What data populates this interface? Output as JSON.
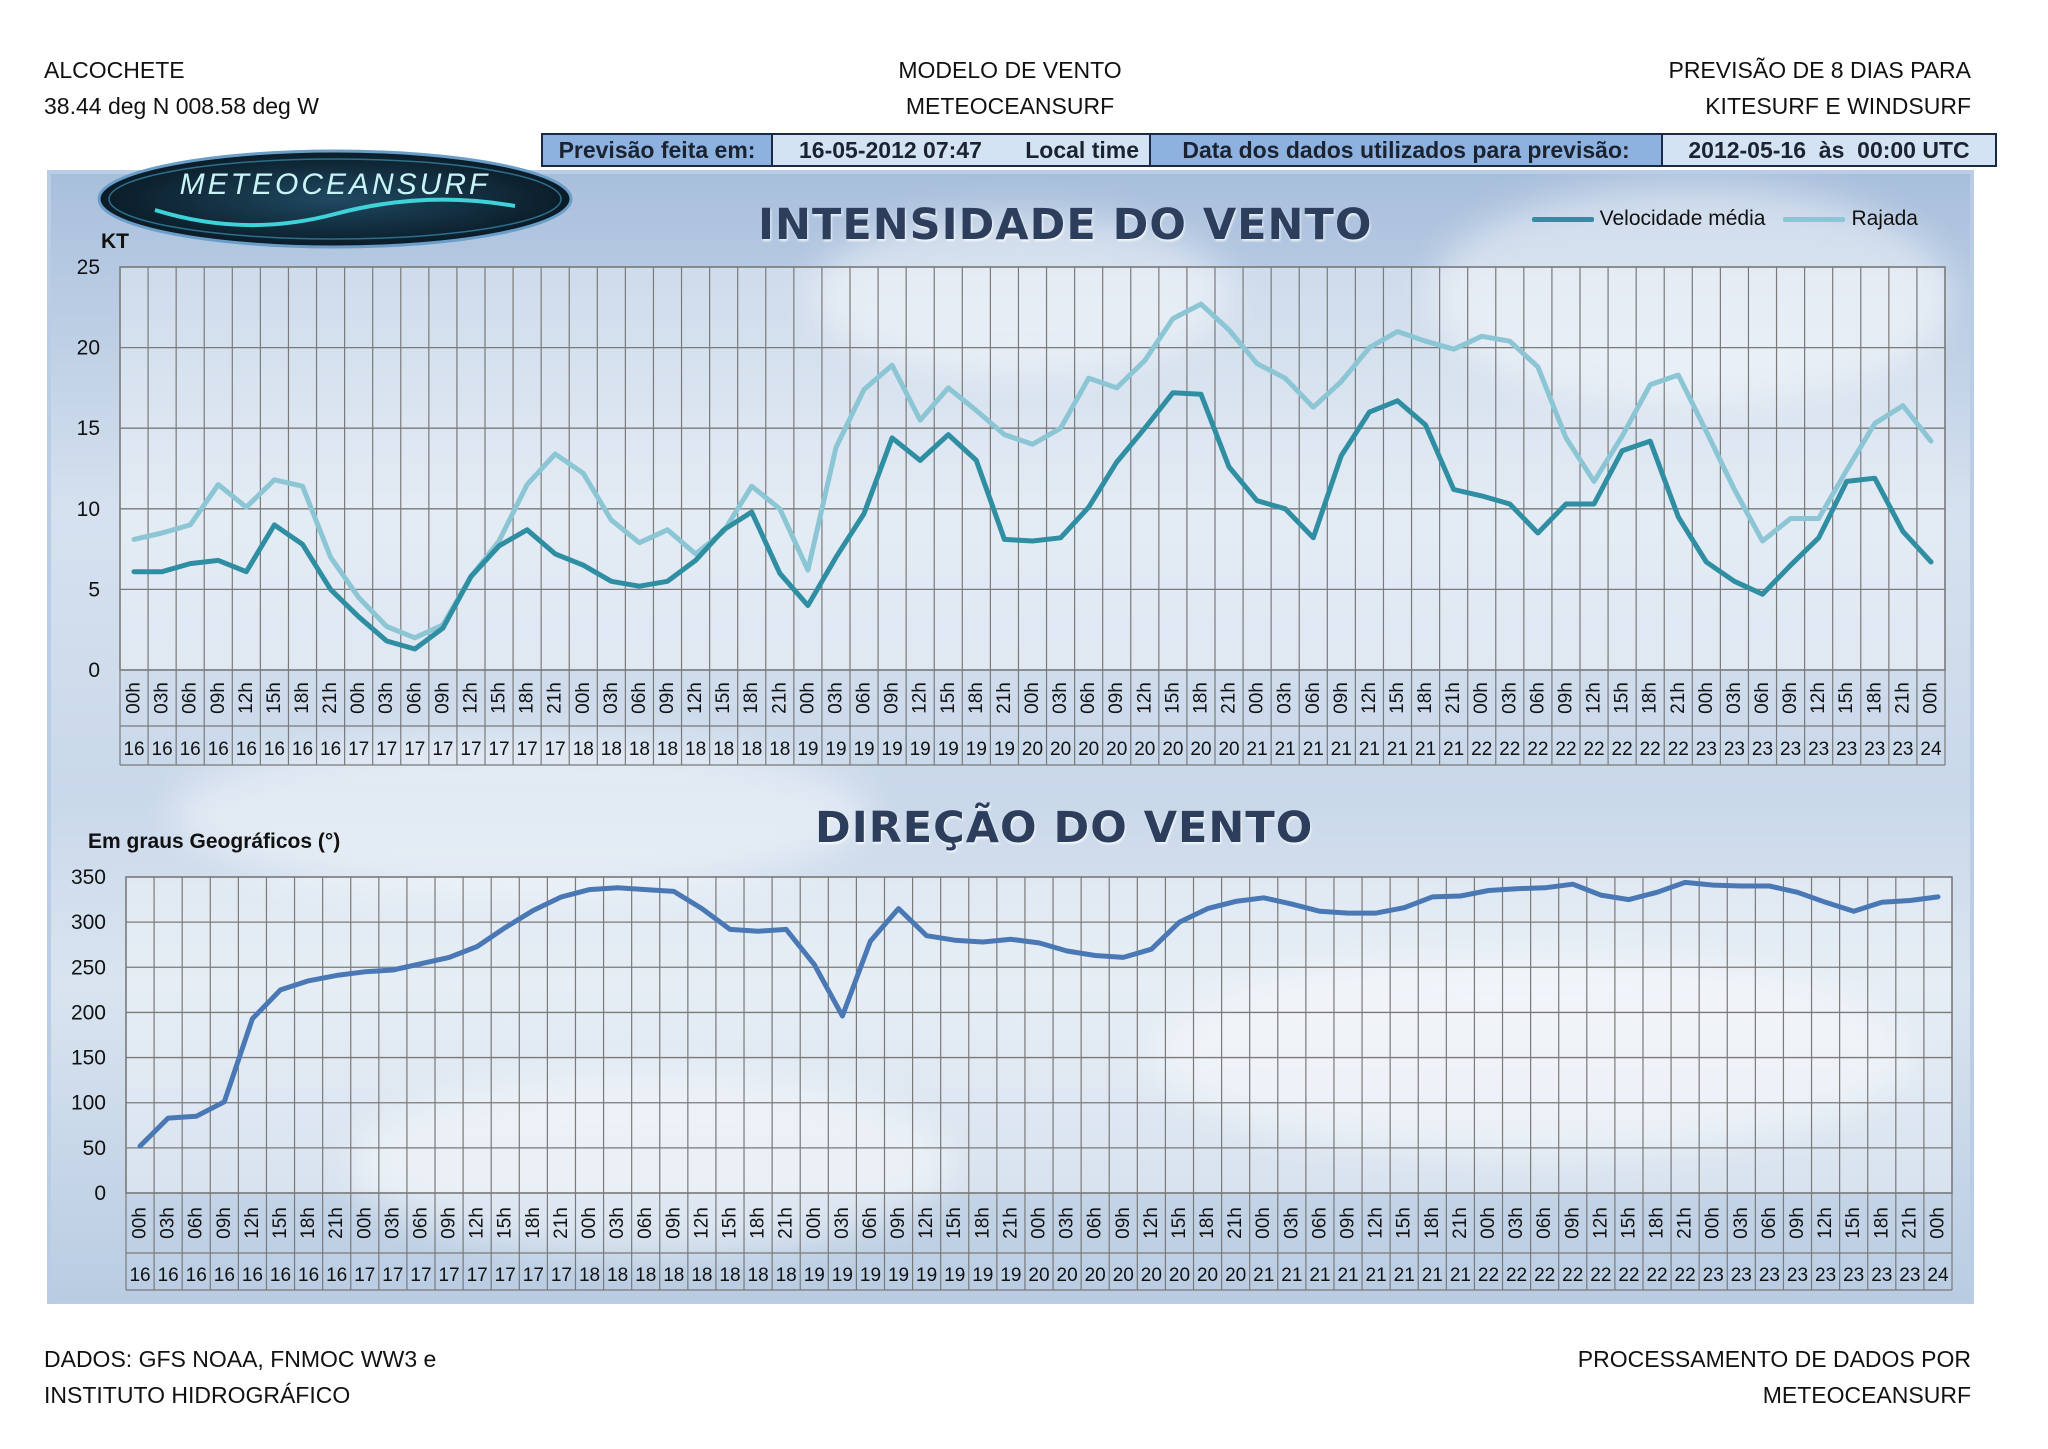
{
  "header": {
    "location": "ALCOCHETE",
    "coords": "38.44 deg N 008.58 deg W",
    "model_line1": "MODELO DE VENTO",
    "model_line2": "METEOCEANSURF",
    "right_line1": "PREVISÃO DE 8 DIAS PARA",
    "right_line2": "KITESURF E WINDSURF"
  },
  "infobar": {
    "forecast_label": "Previsão feita em:",
    "forecast_value": "16-05-2012 07:47",
    "forecast_tz": "Local time",
    "data_label": "Data dos dados utilizados para previsão:",
    "data_value": "2012-05-16  às  00:00 UTC"
  },
  "logo": {
    "text": "METEOCEANSURF"
  },
  "colors": {
    "mean": "#2f8ea1",
    "gust": "#8cc6d4",
    "direction": "#4a78b5"
  },
  "chart_data": [
    {
      "type": "line",
      "title": "INTENSIDADE DO VENTO",
      "ylabel": "KT",
      "ylim": [
        0,
        25
      ],
      "yticks": [
        0,
        5,
        10,
        15,
        20,
        25
      ],
      "grid": true,
      "legend_position": "top-right",
      "hours": [
        "00h",
        "03h",
        "06h",
        "09h",
        "12h",
        "15h",
        "18h",
        "21h",
        "00h",
        "03h",
        "06h",
        "09h",
        "12h",
        "15h",
        "18h",
        "21h",
        "00h",
        "03h",
        "06h",
        "09h",
        "12h",
        "15h",
        "18h",
        "21h",
        "00h",
        "03h",
        "06h",
        "09h",
        "12h",
        "15h",
        "18h",
        "21h",
        "00h",
        "03h",
        "06h",
        "09h",
        "12h",
        "15h",
        "18h",
        "21h",
        "00h",
        "03h",
        "06h",
        "09h",
        "12h",
        "15h",
        "18h",
        "21h",
        "00h",
        "03h",
        "06h",
        "09h",
        "12h",
        "15h",
        "18h",
        "21h",
        "00h",
        "03h",
        "06h",
        "09h",
        "12h",
        "15h",
        "18h",
        "21h",
        "00h"
      ],
      "days": [
        "16",
        "16",
        "16",
        "16",
        "16",
        "16",
        "16",
        "16",
        "17",
        "17",
        "17",
        "17",
        "17",
        "17",
        "17",
        "17",
        "18",
        "18",
        "18",
        "18",
        "18",
        "18",
        "18",
        "18",
        "19",
        "19",
        "19",
        "19",
        "19",
        "19",
        "19",
        "19",
        "20",
        "20",
        "20",
        "20",
        "20",
        "20",
        "20",
        "20",
        "21",
        "21",
        "21",
        "21",
        "21",
        "21",
        "21",
        "21",
        "22",
        "22",
        "22",
        "22",
        "22",
        "22",
        "22",
        "22",
        "23",
        "23",
        "23",
        "23",
        "23",
        "23",
        "23",
        "23",
        "24"
      ],
      "series": [
        {
          "name": "Velocidade média",
          "values": [
            6.1,
            6.1,
            6.6,
            6.8,
            6.1,
            9.0,
            7.8,
            5.0,
            3.3,
            1.8,
            1.3,
            2.6,
            5.8,
            7.7,
            8.7,
            7.2,
            6.5,
            5.5,
            5.2,
            5.5,
            6.8,
            8.7,
            9.8,
            6.0,
            4.0,
            7.0,
            9.7,
            14.4,
            13.0,
            14.6,
            13.0,
            8.1,
            8.0,
            8.2,
            10.1,
            12.9,
            15.0,
            17.2,
            17.1,
            12.6,
            10.5,
            10.0,
            8.2,
            13.3,
            16.0,
            16.7,
            15.2,
            11.2,
            10.8,
            10.3,
            8.5,
            10.3,
            10.3,
            13.6,
            14.2,
            9.5,
            6.7,
            5.5,
            4.7,
            6.5,
            8.2,
            11.7,
            11.9,
            8.6,
            6.7
          ]
        },
        {
          "name": "Rajada",
          "values": [
            8.1,
            8.5,
            9.0,
            11.5,
            10.1,
            11.8,
            11.4,
            7.0,
            4.5,
            2.7,
            2.0,
            2.8,
            5.8,
            8.0,
            11.5,
            13.4,
            12.2,
            9.3,
            7.9,
            8.7,
            7.2,
            8.6,
            11.4,
            10.0,
            6.2,
            13.8,
            17.4,
            18.9,
            15.5,
            17.5,
            16.1,
            14.6,
            14.0,
            15.0,
            18.1,
            17.5,
            19.2,
            21.8,
            22.7,
            21.1,
            19.0,
            18.1,
            16.3,
            17.9,
            20.0,
            21.0,
            20.4,
            19.9,
            20.7,
            20.4,
            18.8,
            14.4,
            11.7,
            14.5,
            17.7,
            18.3,
            14.8,
            11.2,
            8.0,
            9.4,
            9.4,
            12.4,
            15.3,
            16.4,
            14.2
          ]
        }
      ]
    },
    {
      "type": "line",
      "title": "DIREÇÃO DO VENTO",
      "ylabel": "Em graus Geográficos (°)",
      "ylim": [
        0,
        350
      ],
      "yticks": [
        0,
        50,
        100,
        150,
        200,
        250,
        300,
        350
      ],
      "grid": true,
      "series": [
        {
          "name": "",
          "values": [
            52,
            83,
            85,
            101,
            193,
            225,
            235,
            241,
            245,
            247,
            254,
            261,
            273,
            294,
            313,
            328,
            336,
            338,
            336,
            334,
            315,
            292,
            290,
            292,
            253,
            196,
            279,
            315,
            285,
            280,
            278,
            281,
            277,
            268,
            263,
            261,
            270,
            300,
            315,
            323,
            327,
            320,
            312,
            310,
            310,
            316,
            328,
            329,
            335,
            337,
            338,
            342,
            330,
            325,
            333,
            344,
            341,
            340,
            340,
            333,
            322,
            312,
            322,
            324,
            328
          ]
        }
      ]
    }
  ],
  "footer": {
    "left_line1": "DADOS: GFS NOAA, FNMOC WW3 e",
    "left_line2": "INSTITUTO HIDROGRÁFICO",
    "right_line1": "PROCESSAMENTO DE DADOS POR",
    "right_line2": "METEOCEANSURF"
  }
}
